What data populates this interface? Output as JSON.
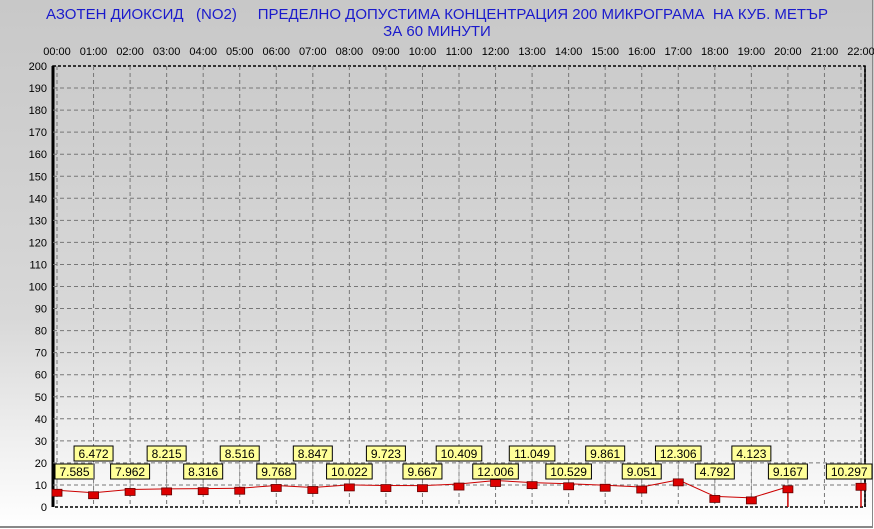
{
  "chart_data": {
    "type": "line",
    "title": "АЗОТЕН ДИОКСИД   (NO2)     ПРЕДЕЛНО ДОПУСТИМА КОНЦЕНТРАЦИЯ 200 МИКРОГРАМА  НА КУБ. МЕТЪР",
    "subtitle": "ЗА 60 МИНУТИ",
    "x": [
      "00:00",
      "01:00",
      "02:00",
      "03:00",
      "04:00",
      "05:00",
      "06:00",
      "07:00",
      "08:00",
      "09:00",
      "10:00",
      "11:00",
      "12:00",
      "13:00",
      "14:00",
      "15:00",
      "16:00",
      "17:00",
      "18:00",
      "19:00",
      "20:00",
      "21:00",
      "22:00"
    ],
    "values": [
      7.585,
      6.472,
      7.962,
      8.215,
      8.316,
      8.516,
      9.768,
      8.847,
      10.022,
      9.723,
      9.667,
      10.409,
      12.006,
      11.049,
      10.529,
      9.861,
      9.051,
      12.306,
      4.792,
      4.123,
      9.167,
      null,
      10.297
    ],
    "labels": [
      "7.585",
      "6.472",
      "7.962",
      "8.215",
      "8.316",
      "8.516",
      "9.768",
      "8.847",
      "10.022",
      "9.723",
      "9.667",
      "10.409",
      "12.006",
      "11.049",
      "10.529",
      "9.861",
      "9.051",
      "12.306",
      "4.792",
      "4.123",
      "9.167",
      "",
      "10.297"
    ],
    "yticks": [
      "0",
      "10",
      "20",
      "30",
      "40",
      "50",
      "60",
      "70",
      "80",
      "90",
      "100",
      "110",
      "120",
      "130",
      "140",
      "150",
      "160",
      "170",
      "180",
      "190",
      "200"
    ],
    "ylim": [
      0,
      200
    ],
    "grid": true,
    "colors": {
      "line": "#cc0000",
      "marker": "#dd0000",
      "label_bg": "#ffff99",
      "title": "#1a1acc"
    }
  }
}
